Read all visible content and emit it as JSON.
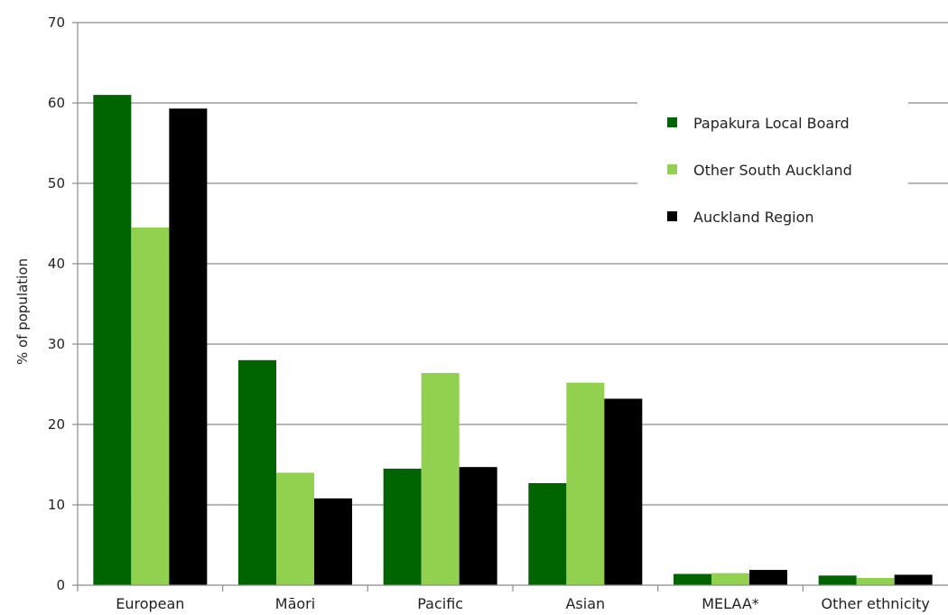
{
  "chart_data": {
    "type": "bar",
    "title": "",
    "xlabel": "",
    "ylabel": "% of population",
    "ylim": [
      0,
      70
    ],
    "yticks": [
      0,
      10,
      20,
      30,
      40,
      50,
      60,
      70
    ],
    "grid": true,
    "legend_position": "top-right",
    "categories": [
      "European",
      "Māori",
      "Pacific",
      "Asian",
      "MELAA*",
      "Other ethnicity"
    ],
    "series": [
      {
        "name": "Papakura Local Board",
        "color": "#006400",
        "values": [
          61.0,
          28.0,
          14.5,
          12.7,
          1.4,
          1.2
        ]
      },
      {
        "name": "Other South Auckland",
        "color": "#92d050",
        "values": [
          44.5,
          14.0,
          26.4,
          25.2,
          1.5,
          0.9
        ]
      },
      {
        "name": "Auckland Region",
        "color": "#000000",
        "values": [
          59.3,
          10.8,
          14.7,
          23.2,
          1.9,
          1.3
        ]
      }
    ]
  }
}
